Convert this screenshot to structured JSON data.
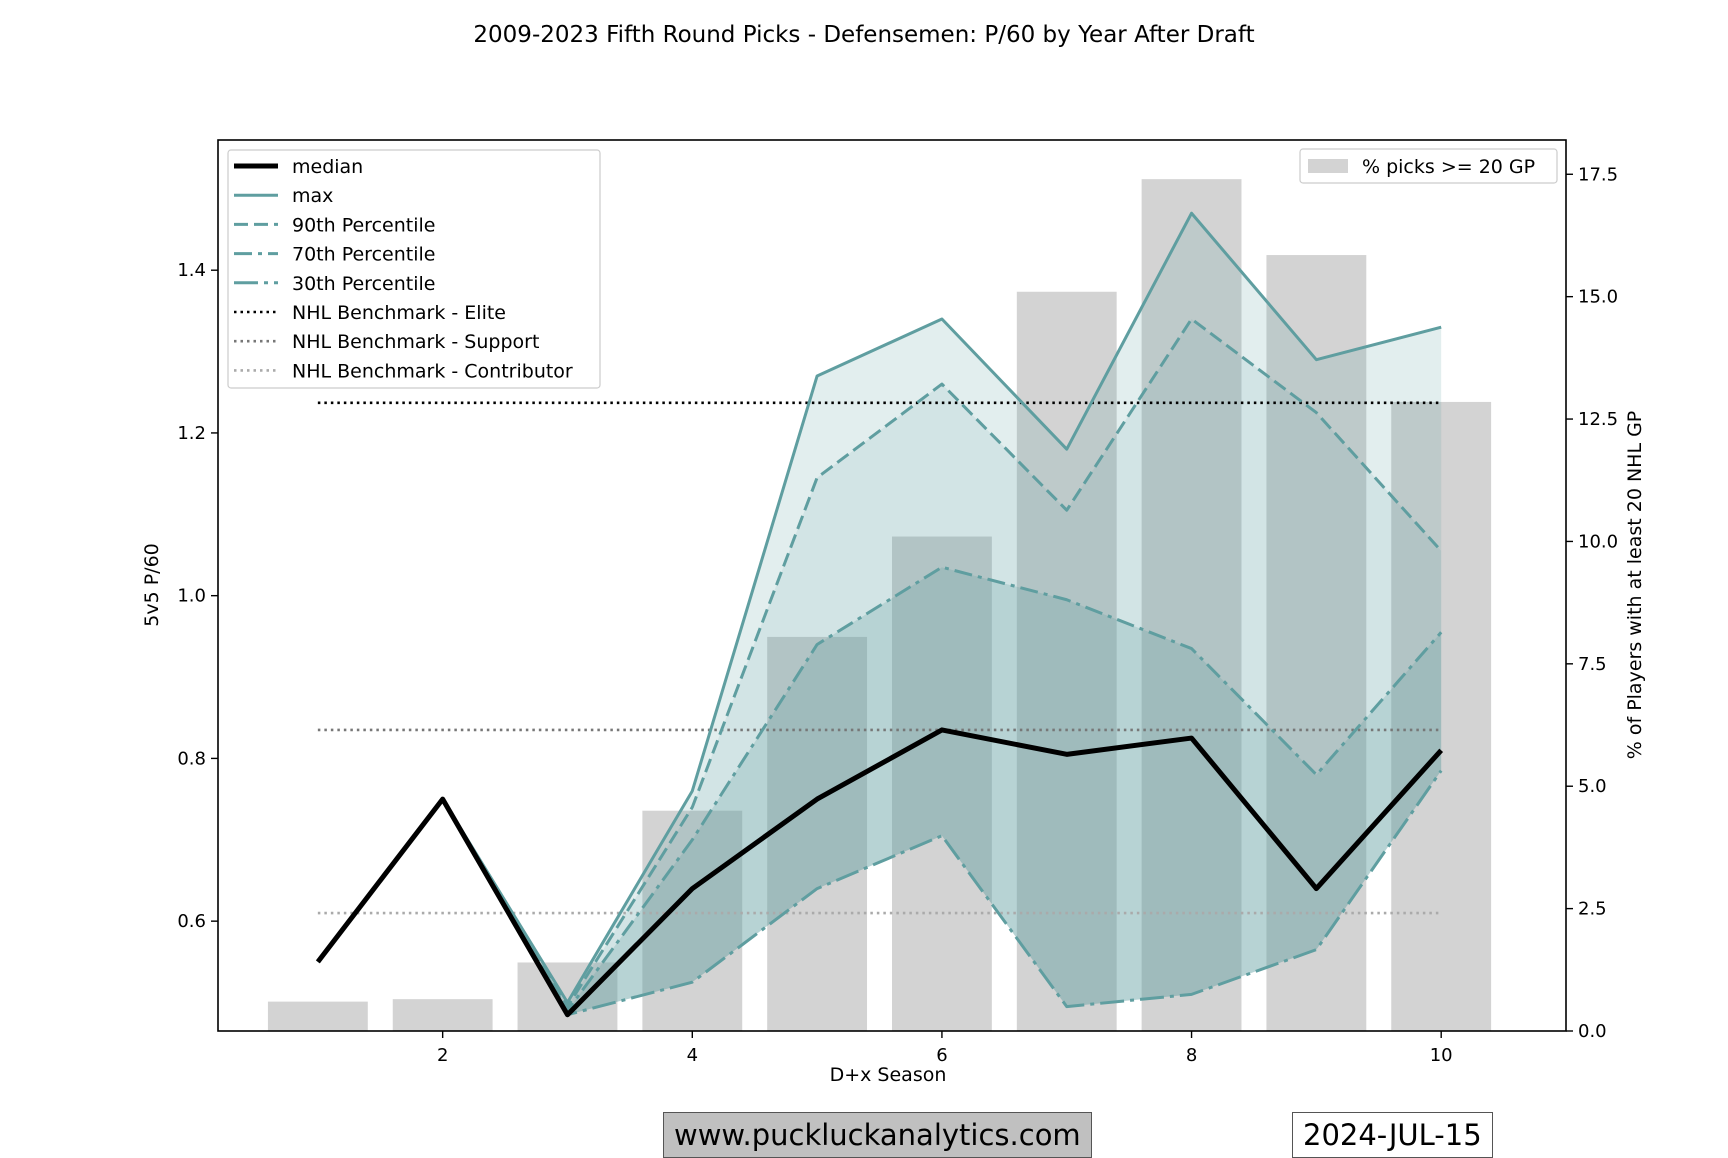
{
  "chart_data": {
    "type": "line",
    "title": "2009-2023 Fifth Round Picks - Defensemen: P/60 by Year After Draft",
    "xlabel": "D+x Season",
    "ylabel": "5v5 P/60",
    "y2label": "% of Players with at least 20 NHL GP",
    "xlim": [
      0.2,
      11.0
    ],
    "ylim": [
      0.465,
      1.56
    ],
    "y2lim": [
      0.0,
      18.2
    ],
    "xticks": [
      2,
      4,
      6,
      8,
      10
    ],
    "yticks": [
      0.6,
      0.8,
      1.0,
      1.2,
      1.4
    ],
    "y2ticks": [
      0.0,
      2.5,
      5.0,
      7.5,
      10.0,
      12.5,
      15.0,
      17.5
    ],
    "x": [
      1,
      2,
      3,
      4,
      5,
      6,
      7,
      8,
      9,
      10
    ],
    "series": [
      {
        "name": "median",
        "style": "solid-thick",
        "color": "#000000",
        "values": [
          0.55,
          0.75,
          0.485,
          0.64,
          0.75,
          0.835,
          0.805,
          0.825,
          0.64,
          0.81
        ]
      },
      {
        "name": "max",
        "style": "solid",
        "color": "#5f9ea0",
        "values": [
          0.55,
          0.75,
          0.5,
          0.76,
          1.27,
          1.34,
          1.18,
          1.47,
          1.29,
          1.33
        ]
      },
      {
        "name": "90th Percentile",
        "style": "dashed",
        "color": "#5f9ea0",
        "values": [
          0.55,
          0.75,
          0.495,
          0.74,
          1.145,
          1.26,
          1.105,
          1.34,
          1.225,
          1.055
        ]
      },
      {
        "name": "70th Percentile",
        "style": "dashdot",
        "color": "#5f9ea0",
        "values": [
          0.55,
          0.75,
          0.49,
          0.7,
          0.94,
          1.035,
          0.995,
          0.935,
          0.78,
          0.955
        ]
      },
      {
        "name": "30th Percentile",
        "style": "dashdot-long",
        "color": "#5f9ea0",
        "values": [
          0.55,
          0.75,
          0.485,
          0.525,
          0.64,
          0.705,
          0.495,
          0.51,
          0.565,
          0.785
        ]
      }
    ],
    "benchmarks": [
      {
        "name": "NHL Benchmark - Elite",
        "value": 1.237,
        "color": "#000000"
      },
      {
        "name": "NHL Benchmark - Support",
        "value": 0.835,
        "color": "#777777"
      },
      {
        "name": "NHL Benchmark - Contributor",
        "value": 0.61,
        "color": "#aaaaaa"
      }
    ],
    "bars": {
      "name": "% picks >= 20 GP",
      "color": "#d3d3d3",
      "values": [
        0.6,
        0.65,
        1.4,
        4.5,
        8.05,
        10.1,
        15.1,
        17.4,
        15.85,
        12.85
      ]
    },
    "fill_color": "#5f9ea0",
    "legend_left": "top-left",
    "legend_right": "top-right"
  },
  "footer": {
    "site": "www.puckluckanalytics.com",
    "date": "2024-JUL-15"
  }
}
